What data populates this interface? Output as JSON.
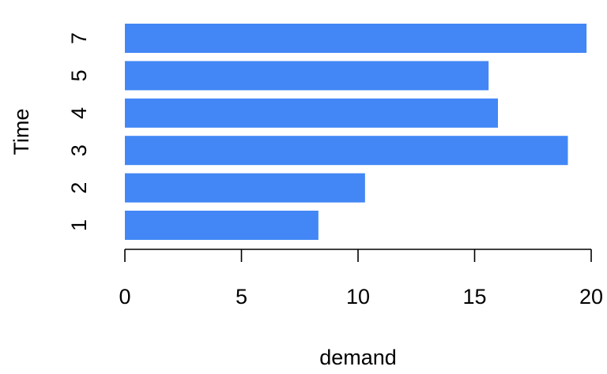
{
  "chart_data": {
    "type": "bar",
    "orientation": "horizontal",
    "categories": [
      "1",
      "2",
      "3",
      "4",
      "5",
      "7"
    ],
    "values": [
      8.3,
      10.3,
      19.0,
      16.0,
      15.6,
      19.8
    ],
    "xlabel": "demand",
    "ylabel": "Time",
    "xlim": [
      0,
      20
    ],
    "xticks": [
      "0",
      "5",
      "10",
      "15",
      "20"
    ],
    "bar_color": "#4287F5",
    "grid": false,
    "legend": "none"
  }
}
